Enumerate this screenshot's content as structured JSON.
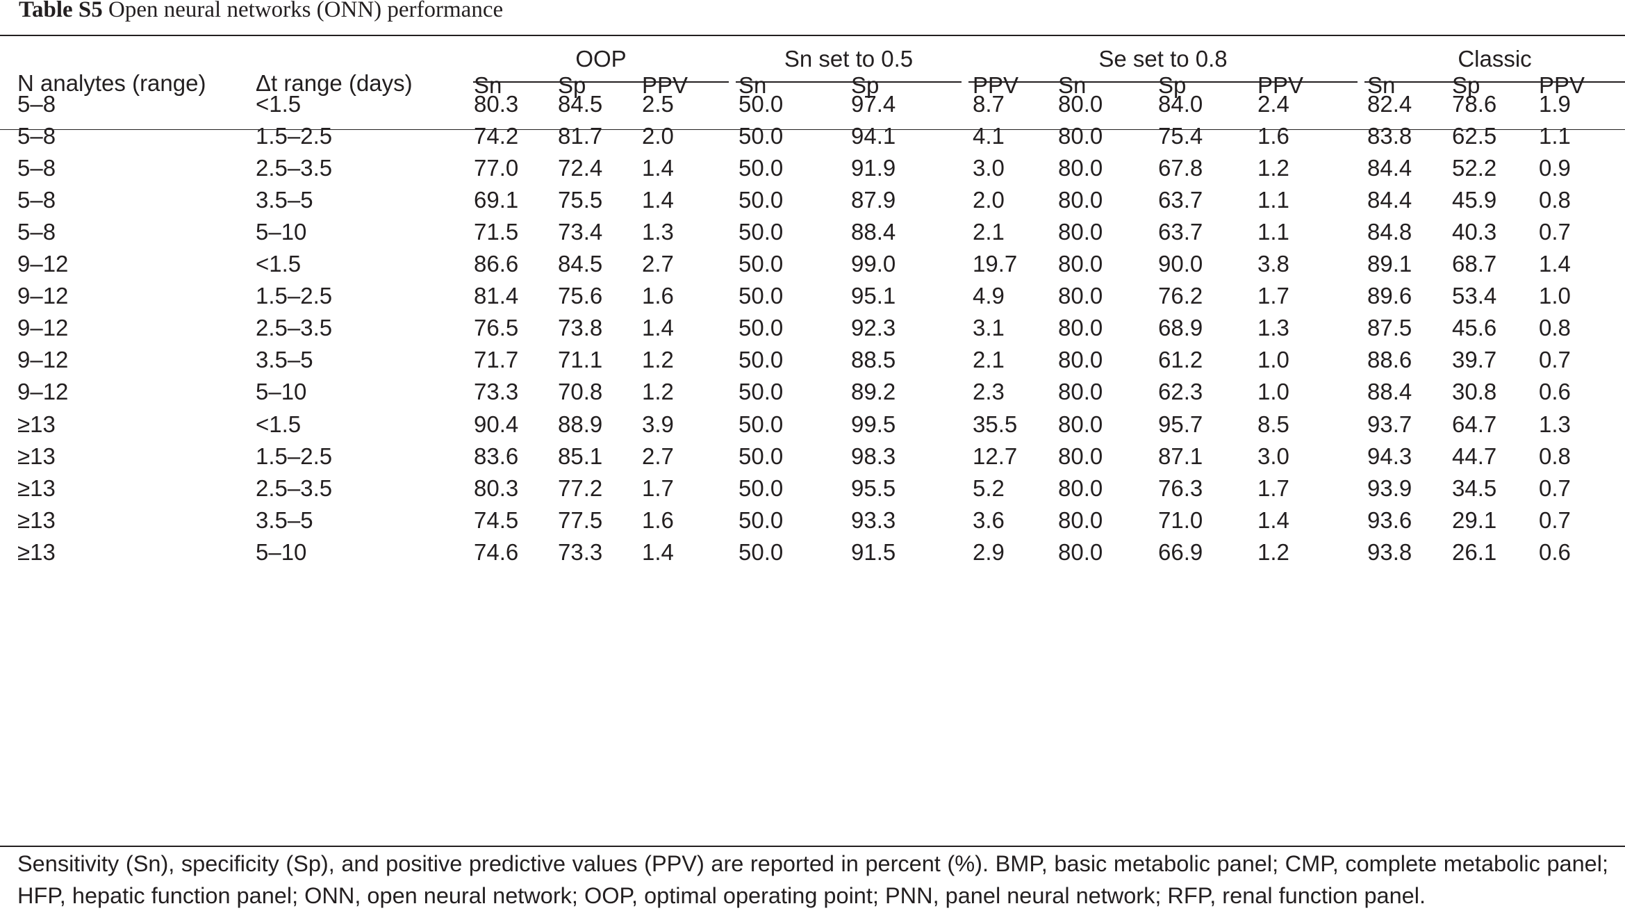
{
  "caption": {
    "label": "Table S5",
    "text": "Open neural networks (ONN) performance"
  },
  "header": {
    "col_n": "N analytes (range)",
    "col_dt": "Δt range (days)",
    "groups": [
      "OOP",
      "Sn set to 0.5",
      "Se set to 0.8",
      "Classic"
    ],
    "sub": [
      "Sn",
      "Sp",
      "PPV",
      "Sn",
      "Sp",
      "PPV",
      "Sn",
      "Sp",
      "PPV",
      "Sn",
      "Sp",
      "PPV"
    ]
  },
  "rows": [
    [
      "5–8",
      "<1.5",
      "80.3",
      "84.5",
      "2.5",
      "50.0",
      "97.4",
      "8.7",
      "80.0",
      "84.0",
      "2.4",
      "82.4",
      "78.6",
      "1.9"
    ],
    [
      "5–8",
      "1.5–2.5",
      "74.2",
      "81.7",
      "2.0",
      "50.0",
      "94.1",
      "4.1",
      "80.0",
      "75.4",
      "1.6",
      "83.8",
      "62.5",
      "1.1"
    ],
    [
      "5–8",
      "2.5–3.5",
      "77.0",
      "72.4",
      "1.4",
      "50.0",
      "91.9",
      "3.0",
      "80.0",
      "67.8",
      "1.2",
      "84.4",
      "52.2",
      "0.9"
    ],
    [
      "5–8",
      "3.5–5",
      "69.1",
      "75.5",
      "1.4",
      "50.0",
      "87.9",
      "2.0",
      "80.0",
      "63.7",
      "1.1",
      "84.4",
      "45.9",
      "0.8"
    ],
    [
      "5–8",
      "5–10",
      "71.5",
      "73.4",
      "1.3",
      "50.0",
      "88.4",
      "2.1",
      "80.0",
      "63.7",
      "1.1",
      "84.8",
      "40.3",
      "0.7"
    ],
    [
      "9–12",
      "<1.5",
      "86.6",
      "84.5",
      "2.7",
      "50.0",
      "99.0",
      "19.7",
      "80.0",
      "90.0",
      "3.8",
      "89.1",
      "68.7",
      "1.4"
    ],
    [
      "9–12",
      "1.5–2.5",
      "81.4",
      "75.6",
      "1.6",
      "50.0",
      "95.1",
      "4.9",
      "80.0",
      "76.2",
      "1.7",
      "89.6",
      "53.4",
      "1.0"
    ],
    [
      "9–12",
      "2.5–3.5",
      "76.5",
      "73.8",
      "1.4",
      "50.0",
      "92.3",
      "3.1",
      "80.0",
      "68.9",
      "1.3",
      "87.5",
      "45.6",
      "0.8"
    ],
    [
      "9–12",
      "3.5–5",
      "71.7",
      "71.1",
      "1.2",
      "50.0",
      "88.5",
      "2.1",
      "80.0",
      "61.2",
      "1.0",
      "88.6",
      "39.7",
      "0.7"
    ],
    [
      "9–12",
      "5–10",
      "73.3",
      "70.8",
      "1.2",
      "50.0",
      "89.2",
      "2.3",
      "80.0",
      "62.3",
      "1.0",
      "88.4",
      "30.8",
      "0.6"
    ],
    [
      "≥13",
      "<1.5",
      "90.4",
      "88.9",
      "3.9",
      "50.0",
      "99.5",
      "35.5",
      "80.0",
      "95.7",
      "8.5",
      "93.7",
      "64.7",
      "1.3"
    ],
    [
      "≥13",
      "1.5–2.5",
      "83.6",
      "85.1",
      "2.7",
      "50.0",
      "98.3",
      "12.7",
      "80.0",
      "87.1",
      "3.0",
      "94.3",
      "44.7",
      "0.8"
    ],
    [
      "≥13",
      "2.5–3.5",
      "80.3",
      "77.2",
      "1.7",
      "50.0",
      "95.5",
      "5.2",
      "80.0",
      "76.3",
      "1.7",
      "93.9",
      "34.5",
      "0.7"
    ],
    [
      "≥13",
      "3.5–5",
      "74.5",
      "77.5",
      "1.6",
      "50.0",
      "93.3",
      "3.6",
      "80.0",
      "71.0",
      "1.4",
      "93.6",
      "29.1",
      "0.7"
    ],
    [
      "≥13",
      "5–10",
      "74.6",
      "73.3",
      "1.4",
      "50.0",
      "91.5",
      "2.9",
      "80.0",
      "66.9",
      "1.2",
      "93.8",
      "26.1",
      "0.6"
    ]
  ],
  "footnote": "Sensitivity (Sn), specificity (Sp), and positive predictive values (PPV) are reported in percent (%). BMP, basic metabolic panel; CMP, complete metabolic panel; HFP, hepatic function panel; ONN, open neural network; OOP, optimal operating point; PNN, panel neural network; RFP, renal function panel."
}
